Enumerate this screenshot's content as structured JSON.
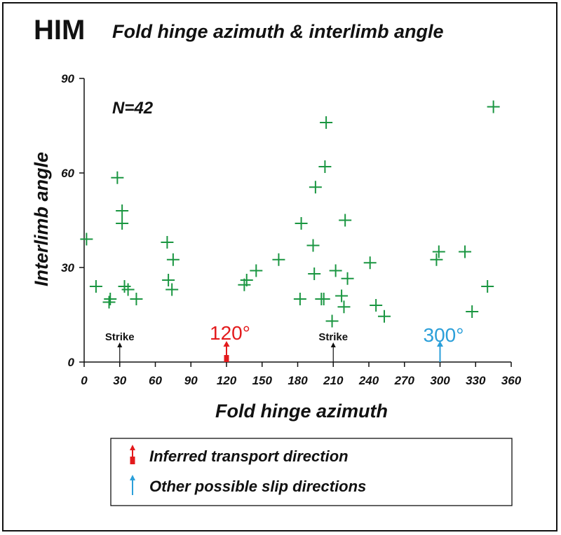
{
  "panel_label": "HIM",
  "colors": {
    "marker": "#1a9641",
    "transport": "#e31a1c",
    "slip": "#2b9fd9",
    "ink": "#111111"
  },
  "chart_data": {
    "type": "scatter",
    "title": "Fold hinge azimuth & interlimb angle",
    "xlabel": "Fold hinge azimuth",
    "ylabel": "Interlimb angle",
    "xlim": [
      0,
      360
    ],
    "ylim": [
      0,
      90
    ],
    "xticks": [
      "0",
      "30",
      "60",
      "90",
      "120",
      "150",
      "180",
      "210",
      "240",
      "270",
      "300",
      "330",
      "360"
    ],
    "yticks": [
      "0",
      "30",
      "60",
      "90"
    ],
    "grid": false,
    "marker": "plus",
    "n_label": "N=42",
    "points": [
      {
        "x": 2,
        "y": 39
      },
      {
        "x": 10,
        "y": 24
      },
      {
        "x": 21,
        "y": 19
      },
      {
        "x": 22,
        "y": 20
      },
      {
        "x": 28,
        "y": 58.5
      },
      {
        "x": 32,
        "y": 48
      },
      {
        "x": 32,
        "y": 44
      },
      {
        "x": 34,
        "y": 24
      },
      {
        "x": 37,
        "y": 23
      },
      {
        "x": 44,
        "y": 20
      },
      {
        "x": 70,
        "y": 38
      },
      {
        "x": 71,
        "y": 26
      },
      {
        "x": 74,
        "y": 23
      },
      {
        "x": 75,
        "y": 32.5
      },
      {
        "x": 135,
        "y": 24.5
      },
      {
        "x": 137,
        "y": 26
      },
      {
        "x": 145,
        "y": 29
      },
      {
        "x": 164,
        "y": 32.5
      },
      {
        "x": 182,
        "y": 20
      },
      {
        "x": 183,
        "y": 44
      },
      {
        "x": 193,
        "y": 37
      },
      {
        "x": 194,
        "y": 28
      },
      {
        "x": 195,
        "y": 55.5
      },
      {
        "x": 200,
        "y": 20
      },
      {
        "x": 202,
        "y": 20
      },
      {
        "x": 203,
        "y": 62
      },
      {
        "x": 204,
        "y": 76
      },
      {
        "x": 209,
        "y": 13
      },
      {
        "x": 212,
        "y": 29
      },
      {
        "x": 217,
        "y": 21
      },
      {
        "x": 219,
        "y": 17.5
      },
      {
        "x": 220,
        "y": 45
      },
      {
        "x": 222,
        "y": 26.5
      },
      {
        "x": 241,
        "y": 31.5
      },
      {
        "x": 246,
        "y": 18
      },
      {
        "x": 253,
        "y": 14.5
      },
      {
        "x": 297,
        "y": 32.5
      },
      {
        "x": 299,
        "y": 35
      },
      {
        "x": 321,
        "y": 35
      },
      {
        "x": 327,
        "y": 16
      },
      {
        "x": 340,
        "y": 24
      },
      {
        "x": 345,
        "y": 81
      }
    ],
    "annotations": [
      {
        "x": 30,
        "label": "Strike",
        "style": "strike"
      },
      {
        "x": 210,
        "label": "Strike",
        "style": "strike"
      },
      {
        "x": 120,
        "label": "120°",
        "style": "transport"
      },
      {
        "x": 300,
        "label": "300°",
        "style": "slip"
      }
    ]
  },
  "legend": {
    "items": [
      {
        "label": "Inferred transport direction",
        "style": "transport"
      },
      {
        "label": "Other possible slip directions",
        "style": "slip"
      }
    ]
  }
}
